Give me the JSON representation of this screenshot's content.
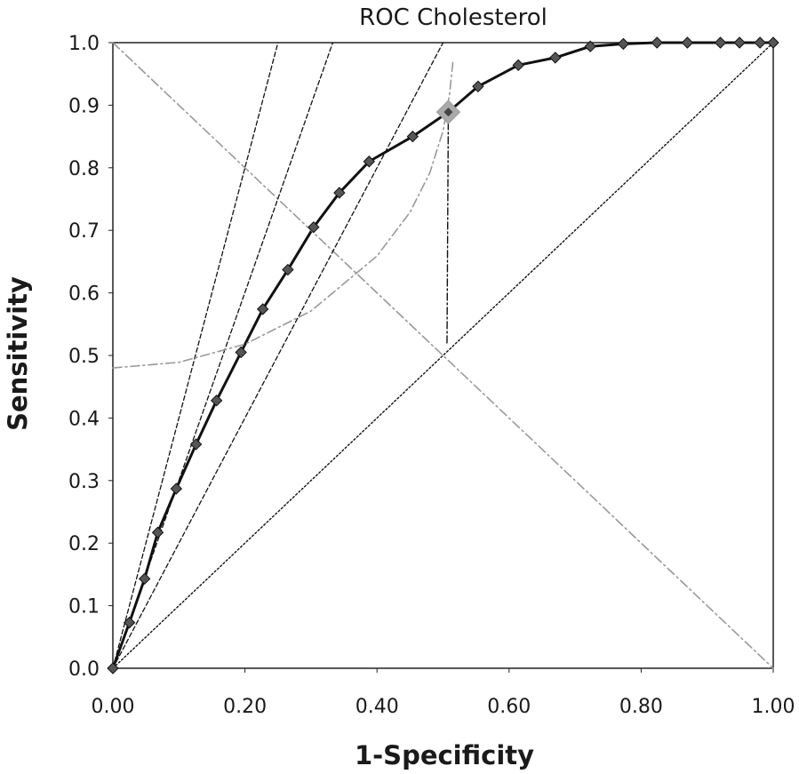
{
  "chart_data": {
    "type": "line",
    "title": "ROC Cholesterol",
    "xlabel": "1-Specificity",
    "ylabel": "Sensitivity",
    "xlim": [
      0,
      1
    ],
    "ylim": [
      0,
      1
    ],
    "x_ticks": [
      "0.00",
      "0.20",
      "0.40",
      "0.60",
      "0.80",
      "1.00"
    ],
    "y_ticks": [
      "0.0",
      "0.1",
      "0.2",
      "0.3",
      "0.4",
      "0.5",
      "0.6",
      "0.7",
      "0.8",
      "0.9",
      "1.0"
    ],
    "grid": false,
    "series": [
      {
        "name": "ROC curve",
        "style": "solid-thick-markers",
        "color": "#111111",
        "marker_color": "#555555",
        "x": [
          0.0,
          0.025,
          0.048,
          0.068,
          0.096,
          0.126,
          0.157,
          0.194,
          0.227,
          0.265,
          0.304,
          0.343,
          0.388,
          0.454,
          0.508,
          0.553,
          0.614,
          0.67,
          0.723,
          0.773,
          0.824,
          0.87,
          0.92,
          0.949,
          0.98,
          1.0
        ],
        "y": [
          0.0,
          0.073,
          0.143,
          0.217,
          0.287,
          0.358,
          0.428,
          0.505,
          0.574,
          0.637,
          0.705,
          0.76,
          0.81,
          0.85,
          0.889,
          0.93,
          0.964,
          0.976,
          0.994,
          0.998,
          1.0,
          1.0,
          1.0,
          1.0,
          1.0,
          1.0
        ]
      },
      {
        "name": "Chance diagonal",
        "style": "dotted",
        "color": "#111111",
        "x": [
          0,
          1
        ],
        "y": [
          0,
          1
        ]
      },
      {
        "name": "Anti-diagonal",
        "style": "dash-dot-gray",
        "color": "#999999",
        "x": [
          0,
          1
        ],
        "y": [
          1,
          0
        ]
      },
      {
        "name": "Tangent line slope 4",
        "style": "dashed",
        "color": "#111111",
        "x": [
          0,
          0.25
        ],
        "y": [
          0,
          1
        ]
      },
      {
        "name": "Tangent line slope 3",
        "style": "dashed",
        "color": "#111111",
        "x": [
          0,
          0.333
        ],
        "y": [
          0,
          1
        ]
      },
      {
        "name": "Tangent line slope 2",
        "style": "dashed",
        "color": "#111111",
        "x": [
          0,
          0.5
        ],
        "y": [
          0,
          1
        ]
      },
      {
        "name": "Youden index segment",
        "style": "dash-dot",
        "color": "#111111",
        "x": [
          0.506,
          0.508
        ],
        "y": [
          0.52,
          0.889
        ]
      },
      {
        "name": "Iso-distance arc",
        "style": "dash-dot-gray",
        "color": "#999999",
        "x": [
          0.0,
          0.1,
          0.2,
          0.3,
          0.4,
          0.45,
          0.48,
          0.5,
          0.51,
          0.515
        ],
        "y": [
          0.48,
          0.489,
          0.518,
          0.571,
          0.659,
          0.729,
          0.792,
          0.859,
          0.919,
          0.97
        ]
      }
    ],
    "highlight_point": {
      "x": 0.508,
      "y": 0.889,
      "color": "#aaaaaa"
    }
  }
}
